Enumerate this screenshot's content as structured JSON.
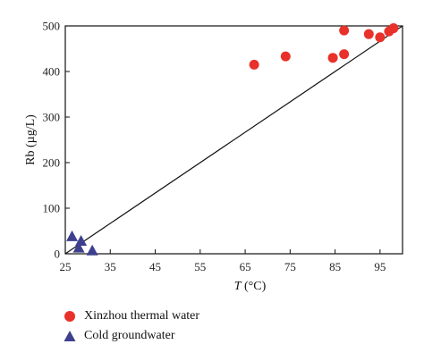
{
  "chart_data": {
    "type": "scatter",
    "title": "",
    "xlabel": "T (°C)",
    "xlabel_italic": "T",
    "xlabel_rest": " (°C)",
    "ylabel": "Rb (µg/L)",
    "xlim": [
      25,
      100
    ],
    "ylim": [
      0,
      500
    ],
    "xticks": [
      25,
      35,
      45,
      55,
      65,
      75,
      85,
      95
    ],
    "yticks": [
      0,
      100,
      200,
      300,
      400,
      500
    ],
    "grid": false,
    "legend_position": "bottom-left, below plot",
    "series": [
      {
        "name": "Xinzhou thermal water",
        "marker": "circle",
        "color": "#e8312b",
        "points": [
          [
            67,
            415
          ],
          [
            74,
            433
          ],
          [
            84.5,
            430
          ],
          [
            87,
            438
          ],
          [
            87,
            490
          ],
          [
            92.5,
            482
          ],
          [
            95,
            475
          ],
          [
            97,
            488
          ],
          [
            98,
            495
          ]
        ]
      },
      {
        "name": "Cold groundwater",
        "marker": "triangle",
        "color": "#3f3f8f",
        "points": [
          [
            26.5,
            37
          ],
          [
            28.5,
            27
          ],
          [
            28,
            12
          ],
          [
            31,
            6
          ]
        ]
      }
    ],
    "trendline": {
      "from": [
        25,
        0
      ],
      "to": [
        100,
        500
      ],
      "color": "#111111"
    }
  }
}
